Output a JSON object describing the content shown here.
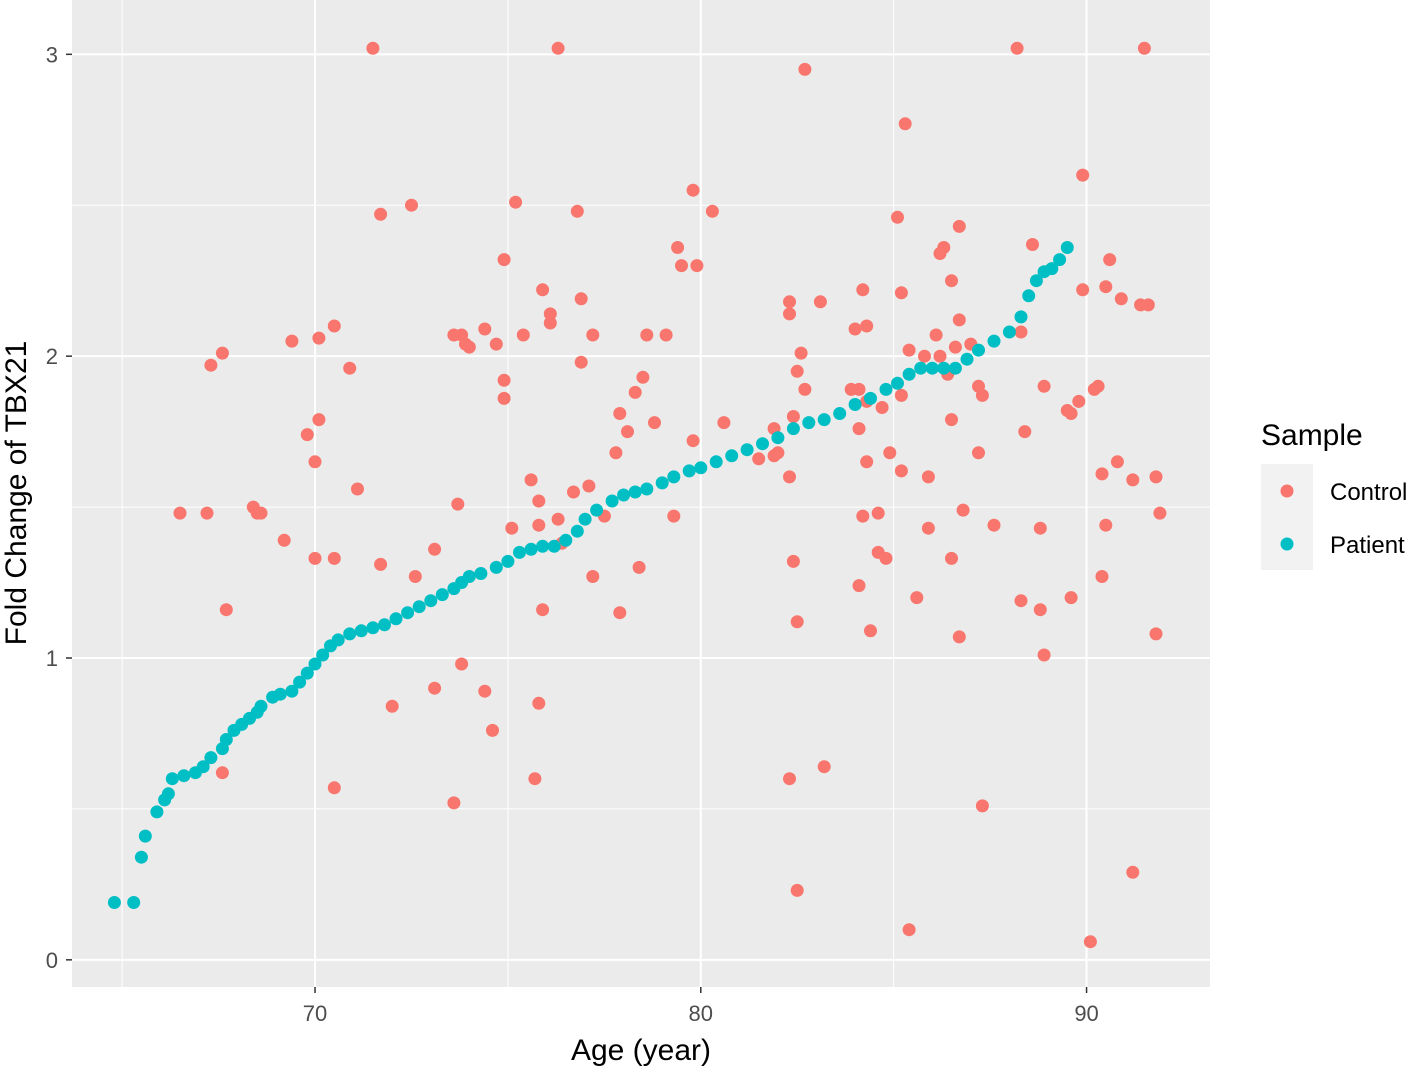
{
  "chart_data": {
    "type": "scatter",
    "xlabel": "Age (year)",
    "ylabel": "Fold Change of TBX21",
    "xlim": [
      63.7,
      93.2
    ],
    "ylim": [
      -0.09,
      3.18
    ],
    "x_ticks": [
      70,
      80,
      90
    ],
    "y_ticks": [
      0,
      1,
      2,
      3
    ],
    "x_tick_labels": [
      "70",
      "80",
      "90"
    ],
    "y_tick_labels": [
      "0",
      "1",
      "2",
      "3"
    ],
    "grid": true,
    "panel_background": "#ebebeb",
    "legend": {
      "title": "Sample",
      "placement": "right",
      "entries": [
        "Control",
        "Patient"
      ]
    },
    "series": [
      {
        "name": "Control",
        "color": "#f8766d",
        "points": [
          [
            71.5,
            3.02
          ],
          [
            76.3,
            3.02
          ],
          [
            88.2,
            3.02
          ],
          [
            91.5,
            3.02
          ],
          [
            82.7,
            2.95
          ],
          [
            85.3,
            2.77
          ],
          [
            89.9,
            2.6
          ],
          [
            79.8,
            2.55
          ],
          [
            75.2,
            2.51
          ],
          [
            72.5,
            2.5
          ],
          [
            71.7,
            2.47
          ],
          [
            76.8,
            2.48
          ],
          [
            80.3,
            2.48
          ],
          [
            85.1,
            2.46
          ],
          [
            86.7,
            2.43
          ],
          [
            88.6,
            2.37
          ],
          [
            86.3,
            2.36
          ],
          [
            86.2,
            2.34
          ],
          [
            79.4,
            2.36
          ],
          [
            79.5,
            2.3
          ],
          [
            79.9,
            2.3
          ],
          [
            74.9,
            2.32
          ],
          [
            90.6,
            2.32
          ],
          [
            86.5,
            2.25
          ],
          [
            75.9,
            2.22
          ],
          [
            84.2,
            2.22
          ],
          [
            85.2,
            2.21
          ],
          [
            89.9,
            2.22
          ],
          [
            90.5,
            2.23
          ],
          [
            90.9,
            2.19
          ],
          [
            76.9,
            2.19
          ],
          [
            82.3,
            2.18
          ],
          [
            83.1,
            2.18
          ],
          [
            91.4,
            2.17
          ],
          [
            91.6,
            2.17
          ],
          [
            76.1,
            2.14
          ],
          [
            82.3,
            2.14
          ],
          [
            76.1,
            2.11
          ],
          [
            86.7,
            2.12
          ],
          [
            70.5,
            2.1
          ],
          [
            74.4,
            2.09
          ],
          [
            84.0,
            2.09
          ],
          [
            84.3,
            2.1
          ],
          [
            75.4,
            2.07
          ],
          [
            77.2,
            2.07
          ],
          [
            78.6,
            2.07
          ],
          [
            79.1,
            2.07
          ],
          [
            88.3,
            2.08
          ],
          [
            73.6,
            2.07
          ],
          [
            73.8,
            2.07
          ],
          [
            70.1,
            2.06
          ],
          [
            69.4,
            2.05
          ],
          [
            74.7,
            2.04
          ],
          [
            73.9,
            2.04
          ],
          [
            74.0,
            2.03
          ],
          [
            86.1,
            2.07
          ],
          [
            86.6,
            2.03
          ],
          [
            87.0,
            2.04
          ],
          [
            67.6,
            2.01
          ],
          [
            82.6,
            2.01
          ],
          [
            85.4,
            2.02
          ],
          [
            85.8,
            2.0
          ],
          [
            86.2,
            2.0
          ],
          [
            67.3,
            1.97
          ],
          [
            70.9,
            1.96
          ],
          [
            76.9,
            1.98
          ],
          [
            82.5,
            1.95
          ],
          [
            86.4,
            1.94
          ],
          [
            74.9,
            1.92
          ],
          [
            78.5,
            1.93
          ],
          [
            82.7,
            1.89
          ],
          [
            83.9,
            1.89
          ],
          [
            84.1,
            1.89
          ],
          [
            78.3,
            1.88
          ],
          [
            87.2,
            1.9
          ],
          [
            88.9,
            1.9
          ],
          [
            90.2,
            1.89
          ],
          [
            90.3,
            1.9
          ],
          [
            84.3,
            1.85
          ],
          [
            84.7,
            1.83
          ],
          [
            85.2,
            1.87
          ],
          [
            87.3,
            1.87
          ],
          [
            74.9,
            1.86
          ],
          [
            89.8,
            1.85
          ],
          [
            89.5,
            1.82
          ],
          [
            89.6,
            1.81
          ],
          [
            77.9,
            1.81
          ],
          [
            82.4,
            1.8
          ],
          [
            86.5,
            1.79
          ],
          [
            80.6,
            1.78
          ],
          [
            78.8,
            1.78
          ],
          [
            70.1,
            1.79
          ],
          [
            69.8,
            1.74
          ],
          [
            78.1,
            1.75
          ],
          [
            81.9,
            1.76
          ],
          [
            84.1,
            1.76
          ],
          [
            88.4,
            1.75
          ],
          [
            79.8,
            1.72
          ],
          [
            81.9,
            1.67
          ],
          [
            82.0,
            1.68
          ],
          [
            77.8,
            1.68
          ],
          [
            84.9,
            1.68
          ],
          [
            87.2,
            1.68
          ],
          [
            81.5,
            1.66
          ],
          [
            84.3,
            1.65
          ],
          [
            70.0,
            1.65
          ],
          [
            85.2,
            1.62
          ],
          [
            85.9,
            1.6
          ],
          [
            75.6,
            1.59
          ],
          [
            77.1,
            1.57
          ],
          [
            82.3,
            1.6
          ],
          [
            90.4,
            1.61
          ],
          [
            90.8,
            1.65
          ],
          [
            91.2,
            1.59
          ],
          [
            91.8,
            1.6
          ],
          [
            71.1,
            1.56
          ],
          [
            76.7,
            1.55
          ],
          [
            75.8,
            1.52
          ],
          [
            66.5,
            1.48
          ],
          [
            67.2,
            1.48
          ],
          [
            68.4,
            1.5
          ],
          [
            68.5,
            1.48
          ],
          [
            68.6,
            1.48
          ],
          [
            73.7,
            1.51
          ],
          [
            76.3,
            1.46
          ],
          [
            77.5,
            1.47
          ],
          [
            79.3,
            1.47
          ],
          [
            84.2,
            1.47
          ],
          [
            84.6,
            1.48
          ],
          [
            86.8,
            1.49
          ],
          [
            91.9,
            1.48
          ],
          [
            75.8,
            1.44
          ],
          [
            75.1,
            1.43
          ],
          [
            85.9,
            1.43
          ],
          [
            87.6,
            1.44
          ],
          [
            88.8,
            1.43
          ],
          [
            90.5,
            1.44
          ],
          [
            69.2,
            1.39
          ],
          [
            76.4,
            1.38
          ],
          [
            73.1,
            1.36
          ],
          [
            84.6,
            1.35
          ],
          [
            84.8,
            1.33
          ],
          [
            86.5,
            1.33
          ],
          [
            70.0,
            1.33
          ],
          [
            70.5,
            1.33
          ],
          [
            71.7,
            1.31
          ],
          [
            82.4,
            1.32
          ],
          [
            78.4,
            1.3
          ],
          [
            72.6,
            1.27
          ],
          [
            77.2,
            1.27
          ],
          [
            90.4,
            1.27
          ],
          [
            84.1,
            1.24
          ],
          [
            85.6,
            1.2
          ],
          [
            88.3,
            1.19
          ],
          [
            89.6,
            1.2
          ],
          [
            67.7,
            1.16
          ],
          [
            75.9,
            1.16
          ],
          [
            77.9,
            1.15
          ],
          [
            88.8,
            1.16
          ],
          [
            82.5,
            1.12
          ],
          [
            84.4,
            1.09
          ],
          [
            86.7,
            1.07
          ],
          [
            91.8,
            1.08
          ],
          [
            88.9,
            1.01
          ],
          [
            73.8,
            0.98
          ],
          [
            73.1,
            0.9
          ],
          [
            74.4,
            0.89
          ],
          [
            72.0,
            0.84
          ],
          [
            75.8,
            0.85
          ],
          [
            74.6,
            0.76
          ],
          [
            67.6,
            0.62
          ],
          [
            75.7,
            0.6
          ],
          [
            82.3,
            0.6
          ],
          [
            83.2,
            0.64
          ],
          [
            70.5,
            0.57
          ],
          [
            73.6,
            0.52
          ],
          [
            87.3,
            0.51
          ],
          [
            91.2,
            0.29
          ],
          [
            82.5,
            0.23
          ],
          [
            85.4,
            0.1
          ],
          [
            90.1,
            0.06
          ]
        ]
      },
      {
        "name": "Patient",
        "color": "#00bfc4",
        "points": [
          [
            64.8,
            0.19
          ],
          [
            65.3,
            0.19
          ],
          [
            65.5,
            0.34
          ],
          [
            65.6,
            0.41
          ],
          [
            65.9,
            0.49
          ],
          [
            66.1,
            0.53
          ],
          [
            66.2,
            0.55
          ],
          [
            66.3,
            0.6
          ],
          [
            66.6,
            0.61
          ],
          [
            66.9,
            0.62
          ],
          [
            67.1,
            0.64
          ],
          [
            67.3,
            0.67
          ],
          [
            67.6,
            0.7
          ],
          [
            67.7,
            0.73
          ],
          [
            67.9,
            0.76
          ],
          [
            68.1,
            0.78
          ],
          [
            68.3,
            0.8
          ],
          [
            68.5,
            0.82
          ],
          [
            68.6,
            0.84
          ],
          [
            68.9,
            0.87
          ],
          [
            69.1,
            0.88
          ],
          [
            69.4,
            0.89
          ],
          [
            69.6,
            0.92
          ],
          [
            69.8,
            0.95
          ],
          [
            70.0,
            0.98
          ],
          [
            70.2,
            1.01
          ],
          [
            70.4,
            1.04
          ],
          [
            70.6,
            1.06
          ],
          [
            70.9,
            1.08
          ],
          [
            71.2,
            1.09
          ],
          [
            71.5,
            1.1
          ],
          [
            71.8,
            1.11
          ],
          [
            72.1,
            1.13
          ],
          [
            72.4,
            1.15
          ],
          [
            72.7,
            1.17
          ],
          [
            73.0,
            1.19
          ],
          [
            73.3,
            1.21
          ],
          [
            73.6,
            1.23
          ],
          [
            73.8,
            1.25
          ],
          [
            74.0,
            1.27
          ],
          [
            74.3,
            1.28
          ],
          [
            74.7,
            1.3
          ],
          [
            75.0,
            1.32
          ],
          [
            75.3,
            1.35
          ],
          [
            75.6,
            1.36
          ],
          [
            75.9,
            1.37
          ],
          [
            76.2,
            1.37
          ],
          [
            76.5,
            1.39
          ],
          [
            76.8,
            1.42
          ],
          [
            77.0,
            1.46
          ],
          [
            77.3,
            1.49
          ],
          [
            77.7,
            1.52
          ],
          [
            78.0,
            1.54
          ],
          [
            78.3,
            1.55
          ],
          [
            78.6,
            1.56
          ],
          [
            79.0,
            1.58
          ],
          [
            79.3,
            1.6
          ],
          [
            79.7,
            1.62
          ],
          [
            80.0,
            1.63
          ],
          [
            80.4,
            1.65
          ],
          [
            80.8,
            1.67
          ],
          [
            81.2,
            1.69
          ],
          [
            81.6,
            1.71
          ],
          [
            82.0,
            1.73
          ],
          [
            82.4,
            1.76
          ],
          [
            82.8,
            1.78
          ],
          [
            83.2,
            1.79
          ],
          [
            83.6,
            1.81
          ],
          [
            84.0,
            1.84
          ],
          [
            84.4,
            1.86
          ],
          [
            84.8,
            1.89
          ],
          [
            85.1,
            1.91
          ],
          [
            85.4,
            1.94
          ],
          [
            85.7,
            1.96
          ],
          [
            86.0,
            1.96
          ],
          [
            86.3,
            1.96
          ],
          [
            86.6,
            1.96
          ],
          [
            86.9,
            1.99
          ],
          [
            87.2,
            2.02
          ],
          [
            87.6,
            2.05
          ],
          [
            88.0,
            2.08
          ],
          [
            88.3,
            2.13
          ],
          [
            88.5,
            2.2
          ],
          [
            88.7,
            2.25
          ],
          [
            88.9,
            2.28
          ],
          [
            89.1,
            2.29
          ],
          [
            89.3,
            2.32
          ],
          [
            89.5,
            2.36
          ]
        ]
      }
    ]
  }
}
